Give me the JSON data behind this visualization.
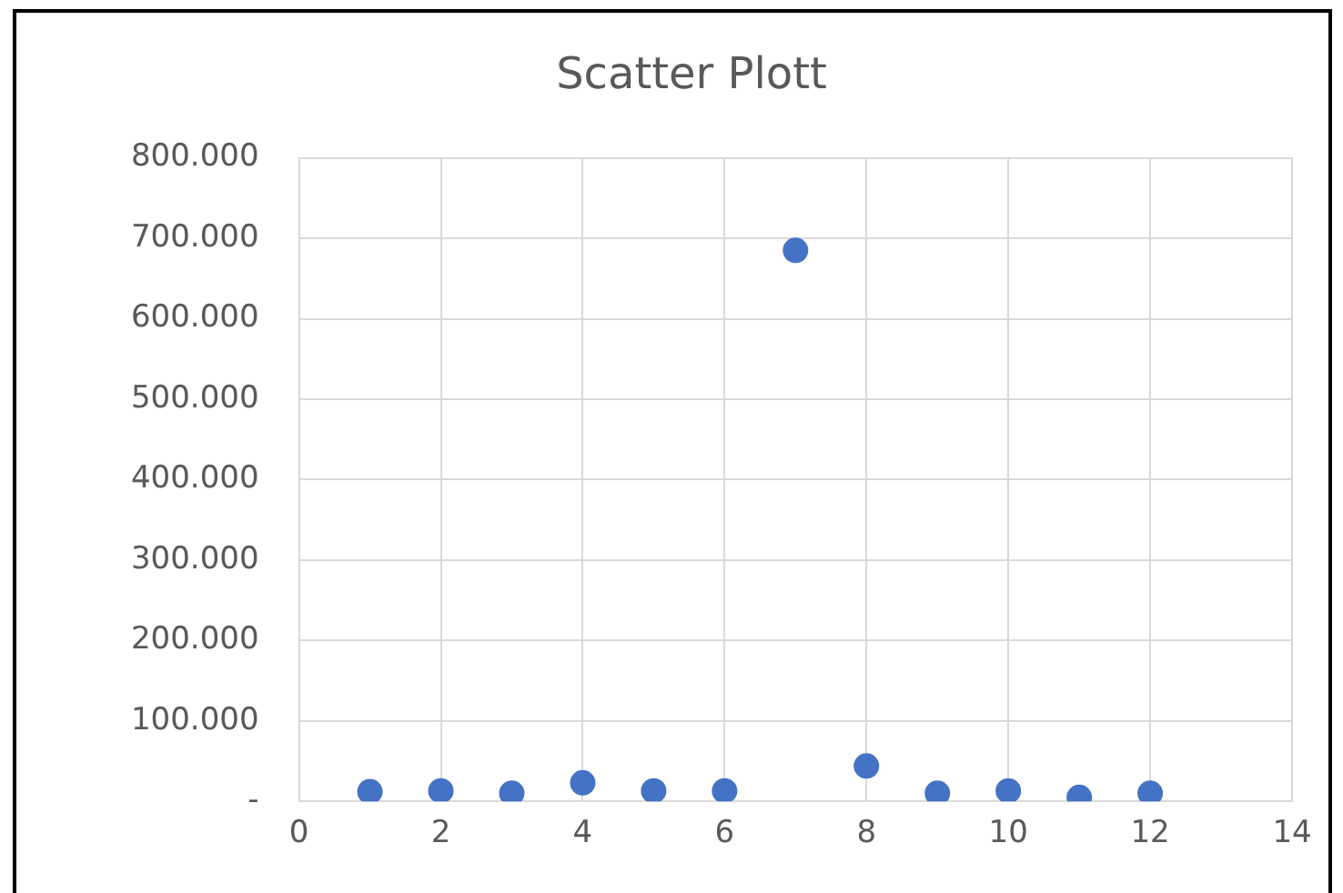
{
  "chart_data": {
    "type": "scatter",
    "title": "Scatter Plott",
    "x": [
      1,
      2,
      3,
      4,
      5,
      6,
      7,
      8,
      9,
      10,
      11,
      12
    ],
    "series": [
      {
        "color": "#4472c4",
        "values": [
          12000,
          13000,
          10000,
          23000,
          13000,
          13000,
          685000,
          44000,
          10000,
          13000,
          5000,
          10000
        ]
      }
    ],
    "xlim": [
      0,
      14
    ],
    "xticks": [
      0,
      2,
      4,
      6,
      8,
      10,
      12,
      14
    ],
    "ylim": [
      0,
      800000
    ],
    "yticks": [
      {
        "value": 0,
        "label": "-"
      },
      {
        "value": 100000,
        "label": "100.000"
      },
      {
        "value": 200000,
        "label": "200.000"
      },
      {
        "value": 300000,
        "label": "300.000"
      },
      {
        "value": 400000,
        "label": "400.000"
      },
      {
        "value": 500000,
        "label": "500.000"
      },
      {
        "value": 600000,
        "label": "600.000"
      },
      {
        "value": 700000,
        "label": "700.000"
      },
      {
        "value": 800000,
        "label": "800.000"
      }
    ],
    "grid": true,
    "legend": false,
    "marker": "circle"
  }
}
